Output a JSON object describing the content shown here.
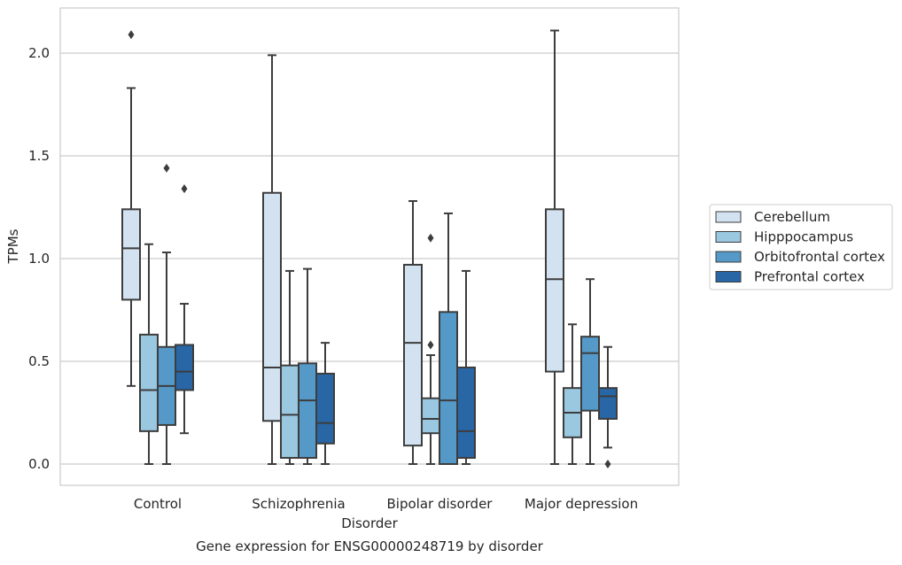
{
  "chart_data": {
    "type": "box",
    "title": "",
    "caption": "Gene expression for ENSG00000248719 by disorder",
    "xlabel": "Disorder",
    "ylabel": "TPMs",
    "ylim": [
      -0.1,
      2.23
    ],
    "yticks": [
      0.0,
      0.5,
      1.0,
      1.5,
      2.0
    ],
    "ytick_labels": [
      "0.0",
      "0.5",
      "1.0",
      "1.5",
      "2.0"
    ],
    "grid": "horizontal",
    "legend_position": "right",
    "categories": [
      "Control",
      "Schizophrenia",
      "Bipolar disorder",
      "Major depression"
    ],
    "series": [
      {
        "name": "Cerebellum",
        "color": "#d2e2f1",
        "boxes": [
          {
            "whislo": 0.38,
            "q1": 0.8,
            "med": 1.05,
            "q3": 1.24,
            "whishi": 1.83,
            "fliers": [
              2.09
            ]
          },
          {
            "whislo": 0.0,
            "q1": 0.21,
            "med": 0.47,
            "q3": 1.32,
            "whishi": 1.99,
            "fliers": []
          },
          {
            "whislo": 0.0,
            "q1": 0.09,
            "med": 0.59,
            "q3": 0.97,
            "whishi": 1.28,
            "fliers": []
          },
          {
            "whislo": 0.0,
            "q1": 0.45,
            "med": 0.9,
            "q3": 1.24,
            "whishi": 2.11,
            "fliers": []
          }
        ]
      },
      {
        "name": "Hipppocampus",
        "color": "#9ac8e0",
        "boxes": [
          {
            "whislo": 0.0,
            "q1": 0.16,
            "med": 0.36,
            "q3": 0.63,
            "whishi": 1.07,
            "fliers": []
          },
          {
            "whislo": 0.0,
            "q1": 0.03,
            "med": 0.24,
            "q3": 0.48,
            "whishi": 0.94,
            "fliers": []
          },
          {
            "whislo": 0.0,
            "q1": 0.15,
            "med": 0.22,
            "q3": 0.32,
            "whishi": 0.53,
            "fliers": [
              1.1,
              0.58
            ]
          },
          {
            "whislo": 0.0,
            "q1": 0.13,
            "med": 0.25,
            "q3": 0.37,
            "whishi": 0.68,
            "fliers": []
          }
        ]
      },
      {
        "name": "Orbitofrontal cortex",
        "color": "#5499c8",
        "boxes": [
          {
            "whislo": 0.0,
            "q1": 0.19,
            "med": 0.38,
            "q3": 0.57,
            "whishi": 1.03,
            "fliers": [
              1.44
            ]
          },
          {
            "whislo": 0.0,
            "q1": 0.03,
            "med": 0.31,
            "q3": 0.49,
            "whishi": 0.95,
            "fliers": []
          },
          {
            "whislo": 0.0,
            "q1": 0.0,
            "med": 0.31,
            "q3": 0.74,
            "whishi": 1.22,
            "fliers": []
          },
          {
            "whislo": 0.0,
            "q1": 0.26,
            "med": 0.54,
            "q3": 0.62,
            "whishi": 0.9,
            "fliers": []
          }
        ]
      },
      {
        "name": "Prefrontal cortex",
        "color": "#2866a6",
        "boxes": [
          {
            "whislo": 0.15,
            "q1": 0.36,
            "med": 0.45,
            "q3": 0.58,
            "whishi": 0.78,
            "fliers": [
              1.34
            ]
          },
          {
            "whislo": 0.0,
            "q1": 0.1,
            "med": 0.2,
            "q3": 0.44,
            "whishi": 0.59,
            "fliers": []
          },
          {
            "whislo": 0.0,
            "q1": 0.03,
            "med": 0.16,
            "q3": 0.47,
            "whishi": 0.94,
            "fliers": []
          },
          {
            "whislo": 0.08,
            "q1": 0.22,
            "med": 0.33,
            "q3": 0.37,
            "whishi": 0.57,
            "fliers": [
              0.0
            ]
          }
        ]
      }
    ]
  }
}
